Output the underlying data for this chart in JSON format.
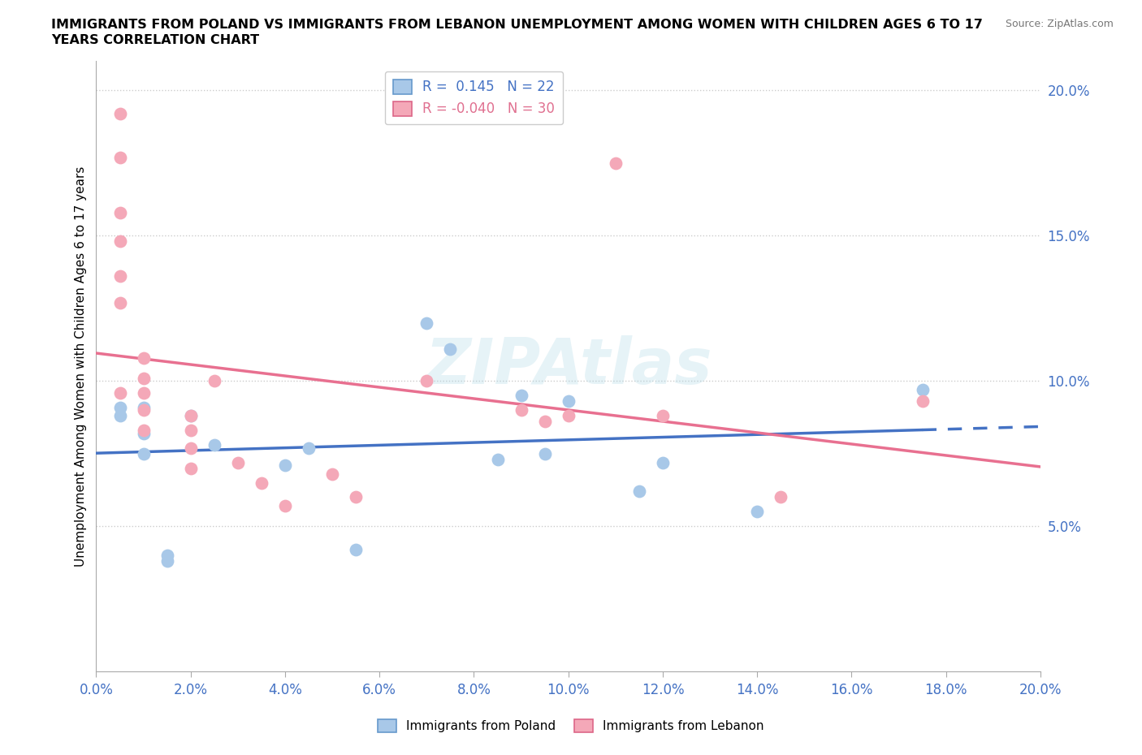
{
  "title_line1": "IMMIGRANTS FROM POLAND VS IMMIGRANTS FROM LEBANON UNEMPLOYMENT AMONG WOMEN WITH CHILDREN AGES 6 TO 17",
  "title_line2": "YEARS CORRELATION CHART",
  "source_text": "Source: ZipAtlas.com",
  "ylabel": "Unemployment Among Women with Children Ages 6 to 17 years",
  "xlim": [
    0.0,
    0.2
  ],
  "ylim": [
    0.0,
    0.21
  ],
  "xticks": [
    0.0,
    0.02,
    0.04,
    0.06,
    0.08,
    0.1,
    0.12,
    0.14,
    0.16,
    0.18,
    0.2
  ],
  "yticks": [
    0.05,
    0.1,
    0.15,
    0.2
  ],
  "poland_R": 0.145,
  "poland_N": 22,
  "lebanon_R": -0.04,
  "lebanon_N": 30,
  "poland_color": "#a8c8e8",
  "lebanon_color": "#f4a8b8",
  "poland_line_color": "#4472c4",
  "lebanon_line_color": "#e87090",
  "watermark": "ZIPAtlas",
  "poland_x": [
    0.005,
    0.005,
    0.01,
    0.01,
    0.01,
    0.015,
    0.015,
    0.02,
    0.025,
    0.04,
    0.045,
    0.055,
    0.07,
    0.075,
    0.085,
    0.09,
    0.095,
    0.1,
    0.115,
    0.12,
    0.14,
    0.175
  ],
  "poland_y": [
    0.088,
    0.091,
    0.075,
    0.082,
    0.091,
    0.038,
    0.04,
    0.088,
    0.078,
    0.071,
    0.077,
    0.042,
    0.12,
    0.111,
    0.073,
    0.095,
    0.075,
    0.093,
    0.062,
    0.072,
    0.055,
    0.097
  ],
  "lebanon_x": [
    0.005,
    0.005,
    0.005,
    0.005,
    0.005,
    0.005,
    0.005,
    0.01,
    0.01,
    0.01,
    0.01,
    0.01,
    0.02,
    0.02,
    0.02,
    0.02,
    0.025,
    0.03,
    0.035,
    0.04,
    0.05,
    0.055,
    0.07,
    0.09,
    0.095,
    0.1,
    0.11,
    0.12,
    0.145,
    0.175
  ],
  "lebanon_y": [
    0.192,
    0.177,
    0.158,
    0.148,
    0.136,
    0.127,
    0.096,
    0.108,
    0.101,
    0.096,
    0.09,
    0.083,
    0.088,
    0.083,
    0.077,
    0.07,
    0.1,
    0.072,
    0.065,
    0.057,
    0.068,
    0.06,
    0.1,
    0.09,
    0.086,
    0.088,
    0.175,
    0.088,
    0.06,
    0.093
  ]
}
